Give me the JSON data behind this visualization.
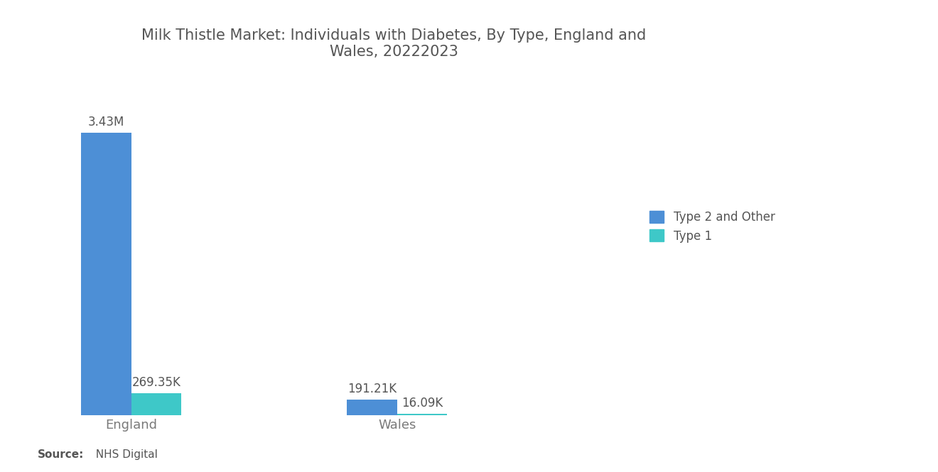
{
  "title": "Milk Thistle Market: Individuals with Diabetes, By Type, England and\nWales, 20222023",
  "title_fontsize": 15,
  "title_color": "#555555",
  "background_color": "#ffffff",
  "categories": [
    "England",
    "Wales"
  ],
  "type2_values": [
    3430000,
    191210
  ],
  "type1_values": [
    269350,
    16090
  ],
  "type2_color": "#4d8fd6",
  "type1_color": "#3ec8c8",
  "type2_label": "Type 2 and Other",
  "type1_label": "Type 1",
  "bar_labels": {
    "england_type2": "3.43M",
    "england_type1": "269.35K",
    "wales_type2": "191.21K",
    "wales_type1": "16.09K"
  },
  "label_fontsize": 12,
  "label_color": "#555555",
  "xlabel_fontsize": 13,
  "xlabel_color": "#7a7a7a",
  "source_bold": "Source:",
  "source_rest": "  NHS Digital",
  "ylim": [
    0,
    3900000
  ],
  "bar_width": 0.32,
  "group_positions": [
    0.5,
    2.2
  ],
  "xlim": [
    -0.1,
    3.5
  ]
}
